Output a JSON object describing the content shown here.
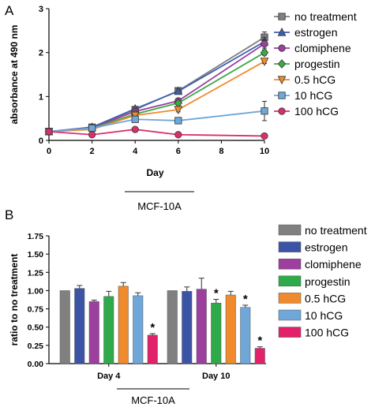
{
  "chart_data": [
    {
      "panel": "A",
      "type": "line",
      "title": "",
      "xlabel": "Day",
      "ylabel": "absorbance at 490 nm",
      "cell_line": "MCF-10A",
      "xlim": [
        0,
        10
      ],
      "ylim": [
        0,
        3
      ],
      "xticks": [
        0,
        2,
        4,
        6,
        8,
        10
      ],
      "yticks": [
        0,
        1,
        2,
        3
      ],
      "x": [
        0,
        2,
        4,
        6,
        10
      ],
      "legend_position": "right",
      "series": [
        {
          "name": "no treatment",
          "color": "#808080",
          "marker": "square",
          "values": [
            0.2,
            0.3,
            0.7,
            1.13,
            2.35
          ],
          "errors": [
            0.02,
            0.05,
            0.06,
            0.05,
            0.12
          ]
        },
        {
          "name": "estrogen",
          "color": "#3f5faf",
          "marker": "triangle",
          "values": [
            0.2,
            0.3,
            0.72,
            1.12,
            2.25
          ],
          "errors": [
            0.02,
            0.04,
            0.05,
            0.05,
            0.1
          ]
        },
        {
          "name": "clomiphene",
          "color": "#9c3f9e",
          "marker": "circle",
          "values": [
            0.2,
            0.28,
            0.66,
            0.9,
            2.2
          ],
          "errors": [
            0.02,
            0.04,
            0.05,
            0.05,
            0.1
          ]
        },
        {
          "name": "progestin",
          "color": "#3daa48",
          "marker": "diamond",
          "values": [
            0.2,
            0.27,
            0.6,
            0.85,
            2.0
          ],
          "errors": [
            0.02,
            0.04,
            0.05,
            0.05,
            0.06
          ]
        },
        {
          "name": "0.5 hCG",
          "color": "#ef8a2d",
          "marker": "triangle-down",
          "values": [
            0.2,
            0.25,
            0.57,
            0.7,
            1.8
          ],
          "errors": [
            0.02,
            0.04,
            0.04,
            0.05,
            0.05
          ]
        },
        {
          "name": "10 hCG",
          "color": "#6ea7d8",
          "marker": "square",
          "values": [
            0.2,
            0.28,
            0.48,
            0.45,
            0.67
          ],
          "errors": [
            0.02,
            0.04,
            0.04,
            0.06,
            0.22
          ]
        },
        {
          "name": "100 hCG",
          "color": "#db2f6d",
          "marker": "circle",
          "values": [
            0.2,
            0.13,
            0.25,
            0.13,
            0.1
          ],
          "errors": [
            0.02,
            0.02,
            0.03,
            0.02,
            0.02
          ]
        }
      ]
    },
    {
      "panel": "B",
      "type": "bar",
      "title": "",
      "xlabel": "",
      "ylabel": "ratio to no treatment",
      "cell_line": "MCF-10A",
      "categories": [
        "Day 4",
        "Day 10"
      ],
      "ylim": [
        0,
        1.75
      ],
      "yticks": [
        0,
        0.25,
        0.5,
        0.75,
        1.0,
        1.25,
        1.5,
        1.75
      ],
      "ytick_labels": [
        "0.00",
        "0.25",
        "0.50",
        "0.75",
        "1.00",
        "1.25",
        "1.50",
        "1.75"
      ],
      "legend_position": "right",
      "significance_marker": "*",
      "series": [
        {
          "name": "no treatment",
          "color": "#808080",
          "values": [
            1.0,
            1.0
          ],
          "errors": [
            0,
            0
          ],
          "significant": [
            false,
            false
          ]
        },
        {
          "name": "estrogen",
          "color": "#3c54a6",
          "values": [
            1.03,
            0.99
          ],
          "errors": [
            0.04,
            0.06
          ],
          "significant": [
            false,
            false
          ]
        },
        {
          "name": "clomiphene",
          "color": "#9c3f9e",
          "values": [
            0.85,
            1.02
          ],
          "errors": [
            0.02,
            0.15
          ],
          "significant": [
            false,
            false
          ]
        },
        {
          "name": "progestin",
          "color": "#2faa4a",
          "values": [
            0.92,
            0.83
          ],
          "errors": [
            0.07,
            0.05
          ],
          "significant": [
            false,
            true
          ]
        },
        {
          "name": "0.5 hCG",
          "color": "#ef8a2d",
          "values": [
            1.06,
            0.94
          ],
          "errors": [
            0.05,
            0.05
          ],
          "significant": [
            false,
            false
          ]
        },
        {
          "name": "10 hCG",
          "color": "#6ea7d8",
          "values": [
            0.93,
            0.77
          ],
          "errors": [
            0.04,
            0.03
          ],
          "significant": [
            false,
            true
          ]
        },
        {
          "name": "100 hCG",
          "color": "#e2216a",
          "values": [
            0.39,
            0.21
          ],
          "errors": [
            0.02,
            0.02
          ],
          "significant": [
            true,
            true
          ]
        }
      ]
    }
  ]
}
